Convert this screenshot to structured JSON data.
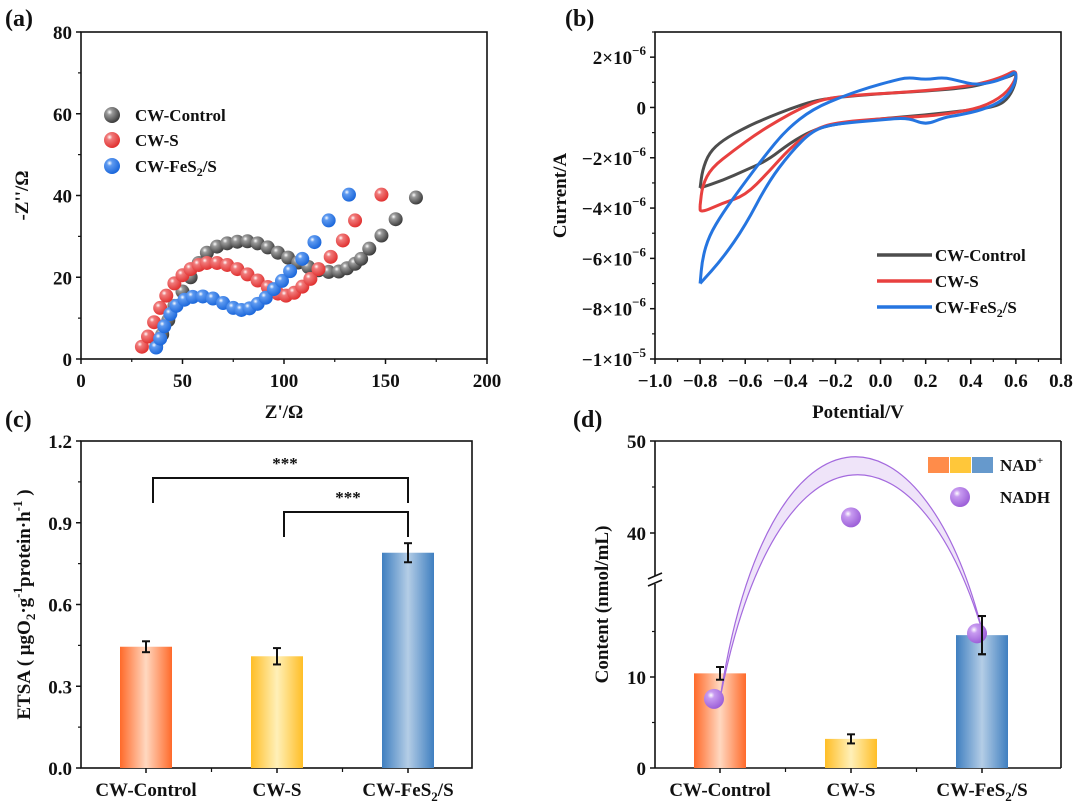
{
  "figure": {
    "panels": [
      "(a)",
      "(b)",
      "(c)",
      "(d)"
    ]
  },
  "chart_data": [
    {
      "panel": "(a)",
      "type": "scatter",
      "title": "",
      "xlabel": "Z'/Ω",
      "ylabel": "-Z''/Ω",
      "xlim": [
        0,
        200
      ],
      "ylim": [
        0,
        80
      ],
      "xticks": [
        "0",
        "50",
        "100",
        "150",
        "200"
      ],
      "yticks": [
        "0",
        "20",
        "40",
        "60",
        "80"
      ],
      "legend_position": "upper-left",
      "series": [
        {
          "name": "CW-Control",
          "color": "#4a4a4a",
          "points": [
            [
              37,
              3
            ],
            [
              40,
              6
            ],
            [
              43,
              9.5
            ],
            [
              46,
              13
            ],
            [
              50,
              16.5
            ],
            [
              54,
              20
            ],
            [
              58,
              23.5
            ],
            [
              62,
              26
            ],
            [
              67,
              27.5
            ],
            [
              72,
              28.3
            ],
            [
              77,
              28.7
            ],
            [
              82,
              28.8
            ],
            [
              87,
              28.3
            ],
            [
              92,
              27.3
            ],
            [
              97,
              26
            ],
            [
              102,
              24.8
            ],
            [
              107,
              23.6
            ],
            [
              112,
              22.5
            ],
            [
              117,
              21.7
            ],
            [
              122,
              21.3
            ],
            [
              127,
              21.4
            ],
            [
              131,
              22.2
            ],
            [
              135,
              23.3
            ],
            [
              138,
              24.5
            ],
            [
              142,
              27
            ],
            [
              148,
              30.2
            ],
            [
              155,
              34.2
            ],
            [
              165,
              39.5
            ]
          ]
        },
        {
          "name": "CW-S",
          "color": "#e8403f",
          "points": [
            [
              30,
              3
            ],
            [
              33,
              5.5
            ],
            [
              36,
              9
            ],
            [
              39,
              12.5
            ],
            [
              42,
              15.5
            ],
            [
              46,
              18.5
            ],
            [
              50,
              20.5
            ],
            [
              54,
              22
            ],
            [
              58,
              23
            ],
            [
              62,
              23.5
            ],
            [
              67,
              23.5
            ],
            [
              72,
              23
            ],
            [
              77,
              22
            ],
            [
              82,
              20.7
            ],
            [
              87,
              19.2
            ],
            [
              92,
              17.6
            ],
            [
              97,
              16
            ],
            [
              101,
              15.5
            ],
            [
              105,
              16.2
            ],
            [
              109,
              17.7
            ],
            [
              113,
              19.6
            ],
            [
              117,
              22
            ],
            [
              123,
              25
            ],
            [
              129,
              29
            ],
            [
              135,
              33.9
            ],
            [
              148,
              40.2
            ]
          ]
        },
        {
          "name": "CW-FeS2/S",
          "color": "#1f6fe0",
          "points": [
            [
              37,
              2.8
            ],
            [
              39,
              5
            ],
            [
              41,
              8
            ],
            [
              44,
              11
            ],
            [
              47,
              13
            ],
            [
              51,
              14.5
            ],
            [
              55,
              15.2
            ],
            [
              60,
              15.3
            ],
            [
              65,
              14.8
            ],
            [
              70,
              13.7
            ],
            [
              75,
              12.5
            ],
            [
              79,
              12
            ],
            [
              83,
              12.4
            ],
            [
              87,
              13.5
            ],
            [
              91,
              15
            ],
            [
              95,
              17.1
            ],
            [
              99,
              19.1
            ],
            [
              103,
              21.5
            ],
            [
              109,
              24.5
            ],
            [
              115,
              28.6
            ],
            [
              122,
              33.9
            ],
            [
              132,
              40.2
            ]
          ]
        }
      ]
    },
    {
      "panel": "(b)",
      "type": "line",
      "title": "",
      "xlabel": "Potential/V",
      "ylabel": "Current/A",
      "xlim": [
        -1.0,
        0.8
      ],
      "ylim": [
        -1e-05,
        3e-06
      ],
      "xticks": [
        "−1.0",
        "−0.8",
        "−0.6",
        "−0.4",
        "−0.2",
        "0.0",
        "0.2",
        "0.4",
        "0.6",
        "0.8"
      ],
      "yticks": [
        {
          "value": 2e-06,
          "mant": "2×10",
          "exp": "−6"
        },
        {
          "value": 0,
          "mant": "0",
          "exp": ""
        },
        {
          "value": -2e-06,
          "mant": "−2×10",
          "exp": "−6"
        },
        {
          "value": -4e-06,
          "mant": "−4×10",
          "exp": "−6"
        },
        {
          "value": -6e-06,
          "mant": "−6×10",
          "exp": "−6"
        },
        {
          "value": -8e-06,
          "mant": "−8×10",
          "exp": "−6"
        },
        {
          "value": -1e-05,
          "mant": "−1×10",
          "exp": "−5"
        }
      ],
      "legend_position": "lower-right",
      "series": [
        {
          "name": "CW-Control",
          "color": "#4d4d4d",
          "points": [
            [
              -0.8,
              -3.2e-06
            ],
            [
              -0.79,
              -2.5e-06
            ],
            [
              -0.76,
              -1.8e-06
            ],
            [
              -0.7,
              -1.3e-06
            ],
            [
              -0.6,
              -8e-07
            ],
            [
              -0.5,
              -4e-07
            ],
            [
              -0.4,
              -5e-08
            ],
            [
              -0.3,
              2.5e-07
            ],
            [
              -0.2,
              4e-07
            ],
            [
              0.0,
              5.5e-07
            ],
            [
              0.2,
              6.5e-07
            ],
            [
              0.4,
              8e-07
            ],
            [
              0.5,
              1.05e-06
            ],
            [
              0.58,
              1.25e-06
            ],
            [
              0.6,
              1.4e-06
            ],
            [
              0.6,
              1e-06
            ],
            [
              0.57,
              4e-07
            ],
            [
              0.52,
              5e-08
            ],
            [
              0.4,
              -1e-07
            ],
            [
              0.2,
              -3e-07
            ],
            [
              0.0,
              -4.5e-07
            ],
            [
              -0.2,
              -6.5e-07
            ],
            [
              -0.3,
              -9e-07
            ],
            [
              -0.4,
              -1.4e-06
            ],
            [
              -0.5,
              -2.1e-06
            ],
            [
              -0.6,
              -2.5e-06
            ],
            [
              -0.7,
              -2.9e-06
            ],
            [
              -0.8,
              -3.2e-06
            ]
          ]
        },
        {
          "name": "CW-S",
          "color": "#e8403f",
          "points": [
            [
              -0.8,
              -3.9e-06
            ],
            [
              -0.79,
              -3.1e-06
            ],
            [
              -0.75,
              -2.4e-06
            ],
            [
              -0.65,
              -1.7e-06
            ],
            [
              -0.55,
              -1.05e-06
            ],
            [
              -0.45,
              -5e-07
            ],
            [
              -0.35,
              -1e-08
            ],
            [
              -0.25,
              3.5e-07
            ],
            [
              -0.1,
              5e-07
            ],
            [
              0.1,
              6e-07
            ],
            [
              0.3,
              7.5e-07
            ],
            [
              0.45,
              9.5e-07
            ],
            [
              0.55,
              1.25e-06
            ],
            [
              0.6,
              1.5e-06
            ],
            [
              0.6,
              1.1e-06
            ],
            [
              0.55,
              5e-07
            ],
            [
              0.45,
              0
            ],
            [
              0.3,
              -2.5e-07
            ],
            [
              0.2,
              -3.5e-07
            ],
            [
              0.0,
              -4.5e-07
            ],
            [
              -0.2,
              -6e-07
            ],
            [
              -0.3,
              -9e-07
            ],
            [
              -0.4,
              -1.6e-06
            ],
            [
              -0.5,
              -2.6e-06
            ],
            [
              -0.6,
              -3.5e-06
            ],
            [
              -0.7,
              -3.8e-06
            ],
            [
              -0.8,
              -4.2e-06
            ],
            [
              -0.8,
              -3.9e-06
            ]
          ]
        },
        {
          "name": "CW-FeS2/S",
          "color": "#2575e0",
          "points": [
            [
              -0.8,
              -7e-06
            ],
            [
              -0.79,
              -6e-06
            ],
            [
              -0.76,
              -5.1e-06
            ],
            [
              -0.7,
              -4.2e-06
            ],
            [
              -0.62,
              -3.2e-06
            ],
            [
              -0.52,
              -2e-06
            ],
            [
              -0.42,
              -9e-07
            ],
            [
              -0.3,
              -5e-08
            ],
            [
              -0.15,
              5e-07
            ],
            [
              -0.05,
              8e-07
            ],
            [
              0.05,
              1.05e-06
            ],
            [
              0.12,
              1.2e-06
            ],
            [
              0.2,
              1.1e-06
            ],
            [
              0.28,
              1.2e-06
            ],
            [
              0.35,
              1.05e-06
            ],
            [
              0.42,
              9e-07
            ],
            [
              0.5,
              1e-06
            ],
            [
              0.57,
              1.25e-06
            ],
            [
              0.6,
              1.45e-06
            ],
            [
              0.6,
              1e-06
            ],
            [
              0.55,
              3e-07
            ],
            [
              0.45,
              -1e-07
            ],
            [
              0.35,
              -3e-07
            ],
            [
              0.28,
              -4e-07
            ],
            [
              0.2,
              -7e-07
            ],
            [
              0.12,
              -4e-07
            ],
            [
              0.0,
              -5e-07
            ],
            [
              -0.2,
              -6.5e-07
            ],
            [
              -0.3,
              -9e-07
            ],
            [
              -0.4,
              -1.8e-06
            ],
            [
              -0.5,
              -3e-06
            ],
            [
              -0.6,
              -4.7e-06
            ],
            [
              -0.7,
              -6e-06
            ],
            [
              -0.8,
              -7e-06
            ]
          ]
        }
      ]
    },
    {
      "panel": "(c)",
      "type": "bar",
      "title": "",
      "xlabel": "",
      "ylabel_main": "ETSA ( μgO",
      "ylabel_sub": "2",
      "ylabel_mid": "·g",
      "ylabel_sup1": "-1",
      "ylabel_mid2": "protein·h",
      "ylabel_sup2": "-1",
      "ylabel_end": " )",
      "ylim": [
        0,
        1.2
      ],
      "yticks": [
        "0.0",
        "0.3",
        "0.6",
        "0.9",
        "1.2"
      ],
      "categories": [
        "CW-Control",
        "CW-S",
        "CW-FeS2/S"
      ],
      "category_labels": [
        {
          "main": "CW-Control",
          "sub": "",
          "tail": ""
        },
        {
          "main": "CW-S",
          "sub": "",
          "tail": ""
        },
        {
          "main": "CW-FeS",
          "sub": "2",
          "tail": "/S"
        }
      ],
      "values": [
        0.445,
        0.41,
        0.79
      ],
      "errors": [
        0.02,
        0.03,
        0.035
      ],
      "colors": [
        "#ff6a2a",
        "#ffc02a",
        "#3f7fc0"
      ],
      "significance": [
        {
          "from": 0,
          "to": 2,
          "label": "***"
        },
        {
          "from": 1,
          "to": 2,
          "label": "***"
        }
      ]
    },
    {
      "panel": "(d)",
      "type": "bar",
      "title": "",
      "xlabel": "",
      "ylabel": "Content (nmol/mL)",
      "ylim": [
        0,
        50
      ],
      "axis_break": [
        20.5,
        35
      ],
      "yticks": [
        "0",
        "10",
        "40",
        "50"
      ],
      "categories": [
        "CW-Control",
        "CW-S",
        "CW-FeS2/S"
      ],
      "category_labels": [
        {
          "main": "CW-Control",
          "sub": "",
          "tail": ""
        },
        {
          "main": "CW-S",
          "sub": "",
          "tail": ""
        },
        {
          "main": "CW-FeS",
          "sub": "2",
          "tail": "/S"
        }
      ],
      "series": [
        {
          "name": "NAD+",
          "kind": "bar",
          "values": [
            10.4,
            3.2,
            14.6
          ],
          "errors": [
            0.7,
            0.5,
            2.1
          ],
          "colors": [
            "#ff6a2a",
            "#ffc02a",
            "#3f7fc0"
          ]
        },
        {
          "name": "NADH",
          "kind": "point",
          "values": [
            7.6,
            41.7,
            14.8
          ],
          "color": "#a46ade"
        }
      ],
      "legend": {
        "nad_label": "NAD",
        "nad_sup": "+",
        "nadh_label": "NADH"
      },
      "legend_position": "top-right"
    }
  ]
}
